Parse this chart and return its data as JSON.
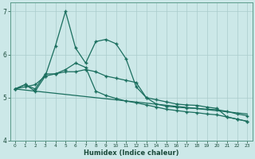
{
  "title": "",
  "xlabel": "Humidex (Indice chaleur)",
  "xlim": [
    -0.5,
    23.5
  ],
  "ylim": [
    4,
    7.2
  ],
  "yticks": [
    4,
    5,
    6,
    7
  ],
  "xticks": [
    0,
    1,
    2,
    3,
    4,
    5,
    6,
    7,
    8,
    9,
    10,
    11,
    12,
    13,
    14,
    15,
    16,
    17,
    18,
    19,
    20,
    21,
    22,
    23
  ],
  "bg_color": "#cce8e8",
  "grid_color": "#aacccc",
  "line_color": "#1a6e5e",
  "line1_x": [
    0,
    1,
    2,
    3,
    4,
    5,
    6,
    7,
    8,
    9,
    10,
    11,
    12,
    13,
    14,
    15,
    16,
    17,
    18,
    19,
    20,
    21,
    22,
    23
  ],
  "line1_y": [
    5.2,
    5.3,
    5.15,
    5.5,
    6.2,
    7.0,
    6.15,
    5.8,
    6.3,
    6.35,
    6.25,
    5.9,
    5.25,
    5.0,
    4.95,
    4.9,
    4.85,
    4.83,
    4.82,
    4.78,
    4.75,
    4.55,
    4.5,
    4.45
  ],
  "line2_x": [
    0,
    1,
    2,
    3,
    4,
    5,
    6,
    7,
    8,
    9,
    10,
    11,
    12,
    13,
    14,
    15,
    16,
    17,
    18,
    19,
    20,
    21,
    22,
    23
  ],
  "line2_y": [
    5.2,
    5.3,
    5.2,
    5.55,
    5.55,
    5.65,
    5.8,
    5.7,
    5.15,
    5.05,
    4.98,
    4.92,
    4.88,
    4.83,
    4.78,
    4.73,
    4.7,
    4.67,
    4.65,
    4.62,
    4.6,
    4.55,
    4.5,
    4.45
  ],
  "line3_x": [
    0,
    1,
    2,
    3,
    4,
    5,
    6,
    7,
    8,
    9,
    10,
    11,
    12,
    13,
    14,
    15,
    16,
    17,
    18,
    19,
    20,
    21,
    22,
    23
  ],
  "line3_y": [
    5.2,
    5.25,
    5.3,
    5.5,
    5.55,
    5.6,
    5.6,
    5.65,
    5.6,
    5.5,
    5.45,
    5.4,
    5.35,
    5.0,
    4.85,
    4.8,
    4.78,
    4.76,
    4.75,
    4.73,
    4.72,
    4.68,
    4.62,
    4.58
  ],
  "line4_x": [
    0,
    23
  ],
  "line4_y": [
    5.2,
    4.62
  ]
}
